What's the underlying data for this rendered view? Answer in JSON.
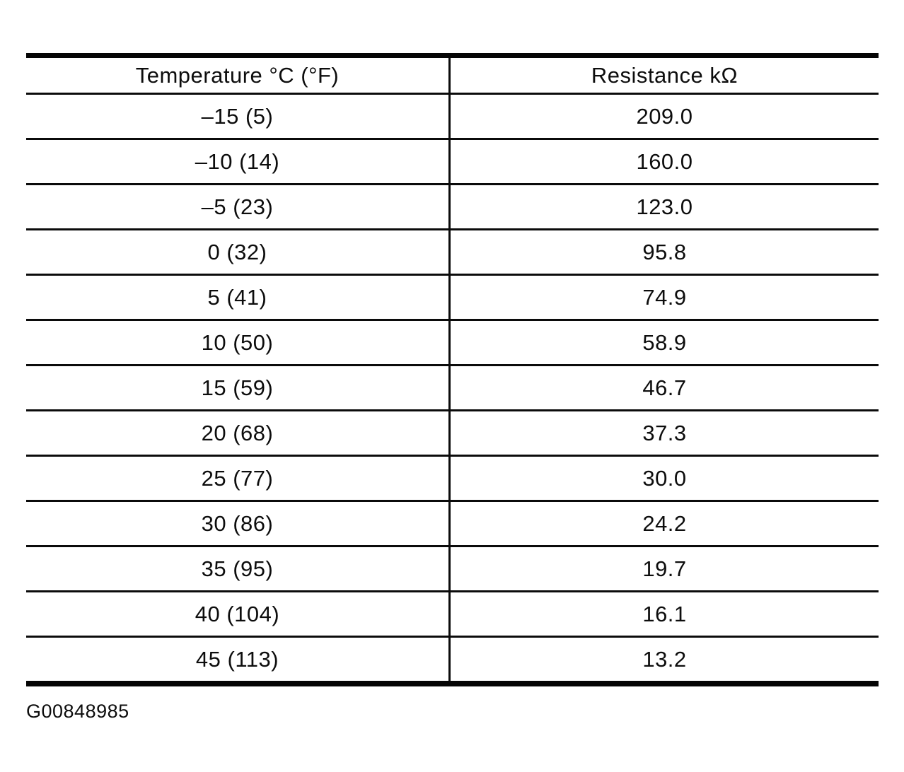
{
  "table": {
    "columns": [
      "Temperature °C (°F)",
      "Resistance kΩ"
    ],
    "rows": [
      [
        "–15 (5)",
        "209.0"
      ],
      [
        "–10 (14)",
        "160.0"
      ],
      [
        "–5 (23)",
        "123.0"
      ],
      [
        "0 (32)",
        "95.8"
      ],
      [
        "5 (41)",
        "74.9"
      ],
      [
        "10 (50)",
        "58.9"
      ],
      [
        "15 (59)",
        "46.7"
      ],
      [
        "20 (68)",
        "37.3"
      ],
      [
        "25 (77)",
        "30.0"
      ],
      [
        "30 (86)",
        "24.2"
      ],
      [
        "35 (95)",
        "19.7"
      ],
      [
        "40 (104)",
        "16.1"
      ],
      [
        "45 (113)",
        "13.2"
      ]
    ]
  },
  "figure_id": "G00848985"
}
